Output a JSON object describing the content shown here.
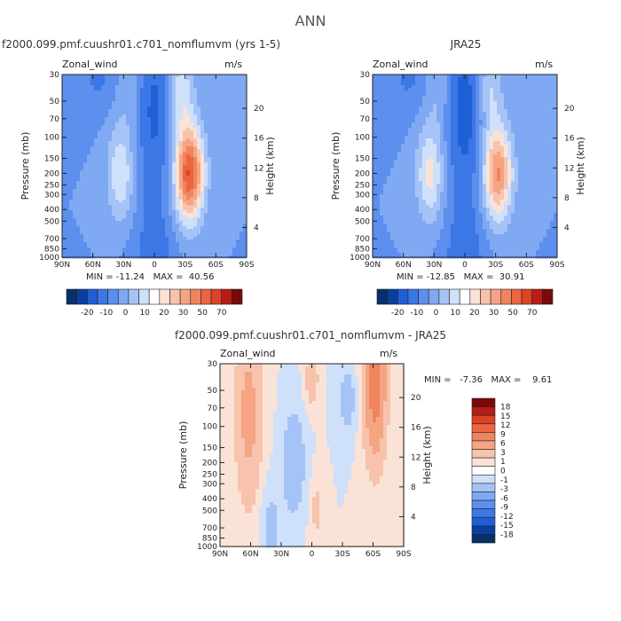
{
  "page": {
    "title": "ANN"
  },
  "colors": {
    "cool": [
      "#08306b",
      "#0a3fa0",
      "#1f5fd6",
      "#3c77e6",
      "#5c8fee",
      "#80a9f3",
      "#a6c3f7",
      "#cfe0fb"
    ],
    "zero": "#ffffff",
    "warm": [
      "#fbe2d6",
      "#f7c3ac",
      "#f5a484",
      "#f0845d",
      "#ea6540",
      "#dc4226",
      "#b71c16",
      "#7a0a0a"
    ],
    "axis": "#222222"
  },
  "chart_data": [
    {
      "type": "heatmap",
      "title": "f2000.099.pmf.cuushr01.c701_nomflumvm (yrs 1-5)",
      "left_label": "Zonal_wind",
      "units": "m/s",
      "ylabel": "Pressure (mb)",
      "y2label": "Height (km)",
      "x_ticks": [
        "90N",
        "60N",
        "30N",
        "0",
        "30S",
        "60S",
        "90S"
      ],
      "y_ticks": [
        "30",
        "50",
        "70",
        "100",
        "150",
        "200",
        "250",
        "300",
        "400",
        "500",
        "700",
        "850",
        "1000"
      ],
      "y2_ticks": [
        "20",
        "16",
        "12",
        "8",
        "4"
      ],
      "min_max": "MIN = -11.24   MAX =  40.56",
      "colorbar": {
        "labels": [
          "-20",
          "-10",
          "0",
          "10",
          "20",
          "30",
          "50",
          "70"
        ]
      },
      "jets": [
        {
          "lat": -34,
          "p": 200,
          "max": 40.56
        },
        {
          "lat": 33,
          "p": 200,
          "max": 15
        }
      ],
      "easterly_min": -11.24,
      "contour_levels": [
        -20,
        -15,
        -10,
        -5,
        0,
        5,
        10,
        15,
        20,
        25,
        30,
        35,
        40,
        50,
        60,
        70
      ]
    },
    {
      "type": "heatmap",
      "title": "JRA25",
      "left_label": "Zonal_wind",
      "units": "m/s",
      "ylabel": "Pressure (mb)",
      "y2label": "Height (km)",
      "x_ticks": [
        "90N",
        "60N",
        "30N",
        "0",
        "30S",
        "60S",
        "90S"
      ],
      "y_ticks": [
        "30",
        "50",
        "70",
        "100",
        "150",
        "200",
        "250",
        "300",
        "400",
        "500",
        "700",
        "850",
        "1000"
      ],
      "y2_ticks": [
        "20",
        "16",
        "12",
        "8",
        "4"
      ],
      "min_max": "MIN = -12.85   MAX =  30.91",
      "colorbar": {
        "labels": [
          "-20",
          "-10",
          "0",
          "10",
          "20",
          "30",
          "50",
          "70"
        ]
      },
      "jets": [
        {
          "lat": -32,
          "p": 200,
          "max": 30.91
        },
        {
          "lat": 34,
          "p": 200,
          "max": 17
        }
      ],
      "easterly_min": -12.85,
      "contour_levels": [
        -20,
        -15,
        -10,
        -5,
        0,
        5,
        10,
        15,
        20,
        25,
        30,
        35,
        40,
        50,
        60,
        70
      ]
    },
    {
      "type": "heatmap",
      "title": "f2000.099.pmf.cuushr01.c701_nomflumvm - JRA25",
      "left_label": "Zonal_wind",
      "units": "m/s",
      "ylabel": "Pressure (mb)",
      "y2label": "Height (km)",
      "x_ticks": [
        "90N",
        "60N",
        "30N",
        "0",
        "30S",
        "60S",
        "90S"
      ],
      "y_ticks": [
        "30",
        "50",
        "70",
        "100",
        "150",
        "200",
        "250",
        "300",
        "400",
        "500",
        "700",
        "850",
        "1000"
      ],
      "y2_ticks": [
        "20",
        "16",
        "12",
        "8",
        "4"
      ],
      "min_max": "MIN =   -7.36   MAX =    9.61",
      "colorbar": {
        "labels": [
          "18",
          "15",
          "12",
          "9",
          "6",
          "3",
          "1",
          "0",
          "-1",
          "-3",
          "-6",
          "-9",
          "-12",
          "-15",
          "-18"
        ]
      },
      "diff_features": [
        {
          "lat": -62,
          "p": 30,
          "value": 9.61
        },
        {
          "lat": 62,
          "p": 70,
          "value": 4
        },
        {
          "lat": 0,
          "p": 40,
          "value": 3
        },
        {
          "lat": 18,
          "p": 250,
          "value": -3
        }
      ],
      "contour_levels": [
        -18,
        -15,
        -12,
        -9,
        -6,
        -3,
        -1,
        0,
        1,
        3,
        6,
        9,
        12,
        15,
        18
      ]
    }
  ]
}
